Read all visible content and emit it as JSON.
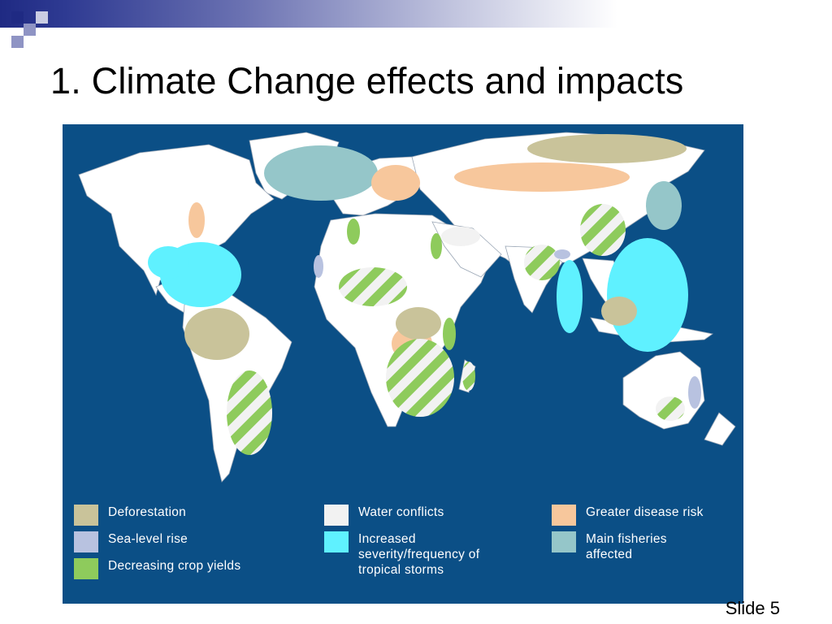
{
  "slide": {
    "title": "1. Climate Change effects and impacts",
    "number_label": "Slide 5"
  },
  "map": {
    "ocean_color": "#0b4f86",
    "land_color": "#ffffff"
  },
  "legend": [
    {
      "key": "deforestation",
      "label": "Deforestation",
      "color": "#c9c39a"
    },
    {
      "key": "sea_level",
      "label": "Sea-level rise",
      "color": "#b8c2e0"
    },
    {
      "key": "crop_yields",
      "label": "Decreasing crop yields",
      "color": "#8ecb5c"
    },
    {
      "key": "water_conflicts",
      "label": "Water conflicts",
      "color": "#f2f2f2"
    },
    {
      "key": "storms",
      "label": "Increased\nseverity/frequency of\ntropical storms",
      "color": "#5ff1ff"
    },
    {
      "key": "disease",
      "label": "Greater disease risk",
      "color": "#f7c79c"
    },
    {
      "key": "fisheries",
      "label": "Main fisheries\naffected",
      "color": "#95c6c9"
    }
  ]
}
